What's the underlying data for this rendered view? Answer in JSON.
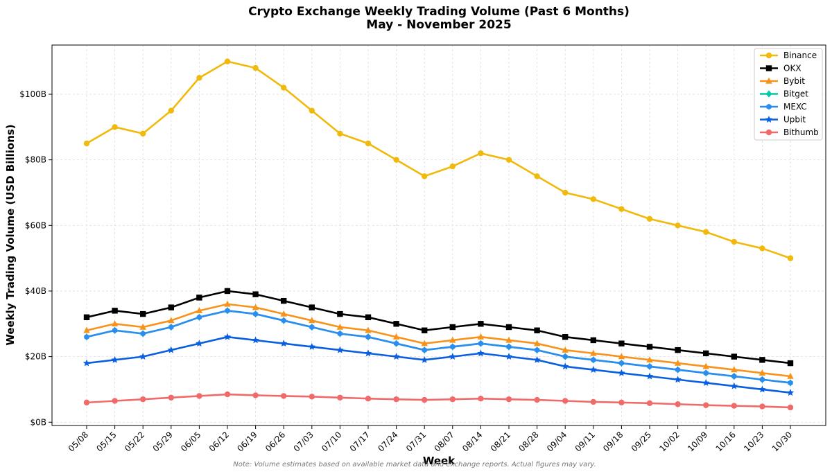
{
  "chart_data": {
    "type": "line",
    "title": "Crypto Exchange Weekly Trading Volume (Past 6 Months)",
    "subtitle": "May - November 2025",
    "xlabel": "Week",
    "ylabel": "Weekly Trading Volume (USD Billions)",
    "ylim": [
      -1,
      115
    ],
    "yticks": [
      0,
      20,
      40,
      60,
      80,
      100
    ],
    "ytick_labels": [
      "$0B",
      "$20B",
      "$40B",
      "$60B",
      "$80B",
      "$100B"
    ],
    "grid": true,
    "legend_position": "top-right",
    "categories": [
      "05/08",
      "05/15",
      "05/22",
      "05/29",
      "06/05",
      "06/12",
      "06/19",
      "06/26",
      "07/03",
      "07/10",
      "07/17",
      "07/24",
      "07/31",
      "08/07",
      "08/14",
      "08/21",
      "08/28",
      "09/04",
      "09/11",
      "09/18",
      "09/25",
      "10/02",
      "10/09",
      "10/16",
      "10/23",
      "10/30"
    ],
    "series": [
      {
        "name": "Binance",
        "color": "#F0B90B",
        "marker": "circle",
        "values": [
          85,
          90,
          88,
          95,
          105,
          110,
          108,
          102,
          95,
          88,
          85,
          80,
          75,
          78,
          82,
          80,
          75,
          70,
          68,
          65,
          62,
          60,
          58,
          55,
          53,
          50
        ]
      },
      {
        "name": "OKX",
        "color": "#000000",
        "marker": "square",
        "values": [
          32,
          34,
          33,
          35,
          38,
          40,
          39,
          37,
          35,
          33,
          32,
          30,
          28,
          29,
          30,
          29,
          28,
          26,
          25,
          24,
          23,
          22,
          21,
          20,
          19,
          18
        ]
      },
      {
        "name": "Bybit",
        "color": "#F7931A",
        "marker": "triangle",
        "values": [
          28,
          30,
          29,
          31,
          34,
          36,
          35,
          33,
          31,
          29,
          28,
          26,
          24,
          25,
          26,
          25,
          24,
          22,
          21,
          20,
          19,
          18,
          17,
          16,
          15,
          14
        ]
      },
      {
        "name": "Bitget",
        "color": "#00C9A7",
        "marker": "diamond",
        "values": [
          26,
          28,
          27,
          29,
          32,
          34,
          33,
          31,
          29,
          27,
          26,
          24,
          22,
          23,
          24,
          23,
          22,
          20,
          19,
          18,
          17,
          16,
          15,
          14,
          13,
          12
        ]
      },
      {
        "name": "MEXC",
        "color": "#2D8CF0",
        "marker": "hexagon",
        "values": [
          26,
          28,
          27,
          29,
          32,
          34,
          33,
          31,
          29,
          27,
          26,
          24,
          22,
          23,
          24,
          23,
          22,
          20,
          19,
          18,
          17,
          16,
          15,
          14,
          13,
          12
        ]
      },
      {
        "name": "Upbit",
        "color": "#0A5FE0",
        "marker": "star",
        "values": [
          18,
          19,
          20,
          22,
          24,
          26,
          25,
          24,
          23,
          22,
          21,
          20,
          19,
          20,
          21,
          20,
          19,
          17,
          16,
          15,
          14,
          13,
          12,
          11,
          10,
          9
        ]
      },
      {
        "name": "Bithumb",
        "color": "#F06A6A",
        "marker": "circle",
        "values": [
          6,
          6.5,
          7,
          7.5,
          8,
          8.5,
          8.2,
          8,
          7.8,
          7.5,
          7.2,
          7,
          6.8,
          7,
          7.2,
          7,
          6.8,
          6.5,
          6.2,
          6,
          5.8,
          5.5,
          5.2,
          5,
          4.8,
          4.5
        ]
      }
    ],
    "note": "Note: Volume estimates based on available market data and exchange reports. Actual figures may vary."
  }
}
